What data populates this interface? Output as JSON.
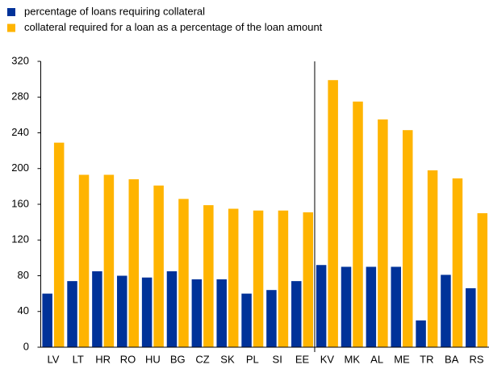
{
  "chart_data": {
    "type": "bar",
    "categories": [
      "LV",
      "LT",
      "HR",
      "RO",
      "HU",
      "BG",
      "CZ",
      "SK",
      "PL",
      "SI",
      "EE",
      "KV",
      "MK",
      "AL",
      "ME",
      "TR",
      "BA",
      "RS"
    ],
    "series": [
      {
        "name": "percentage of loans requiring collateral",
        "color": "#003299",
        "values": [
          60,
          74,
          85,
          80,
          78,
          85,
          76,
          76,
          60,
          64,
          74,
          92,
          90,
          90,
          90,
          30,
          81,
          66
        ]
      },
      {
        "name": "collateral required for a loan as a percentage of the loan amount",
        "color": "#ffb400",
        "values": [
          229,
          193,
          193,
          188,
          181,
          166,
          159,
          155,
          153,
          153,
          151,
          299,
          275,
          255,
          243,
          198,
          189,
          150
        ]
      }
    ],
    "ylim": [
      0,
      320
    ],
    "yticks": [
      0,
      40,
      80,
      120,
      160,
      200,
      240,
      280,
      320
    ],
    "grid": false
  }
}
